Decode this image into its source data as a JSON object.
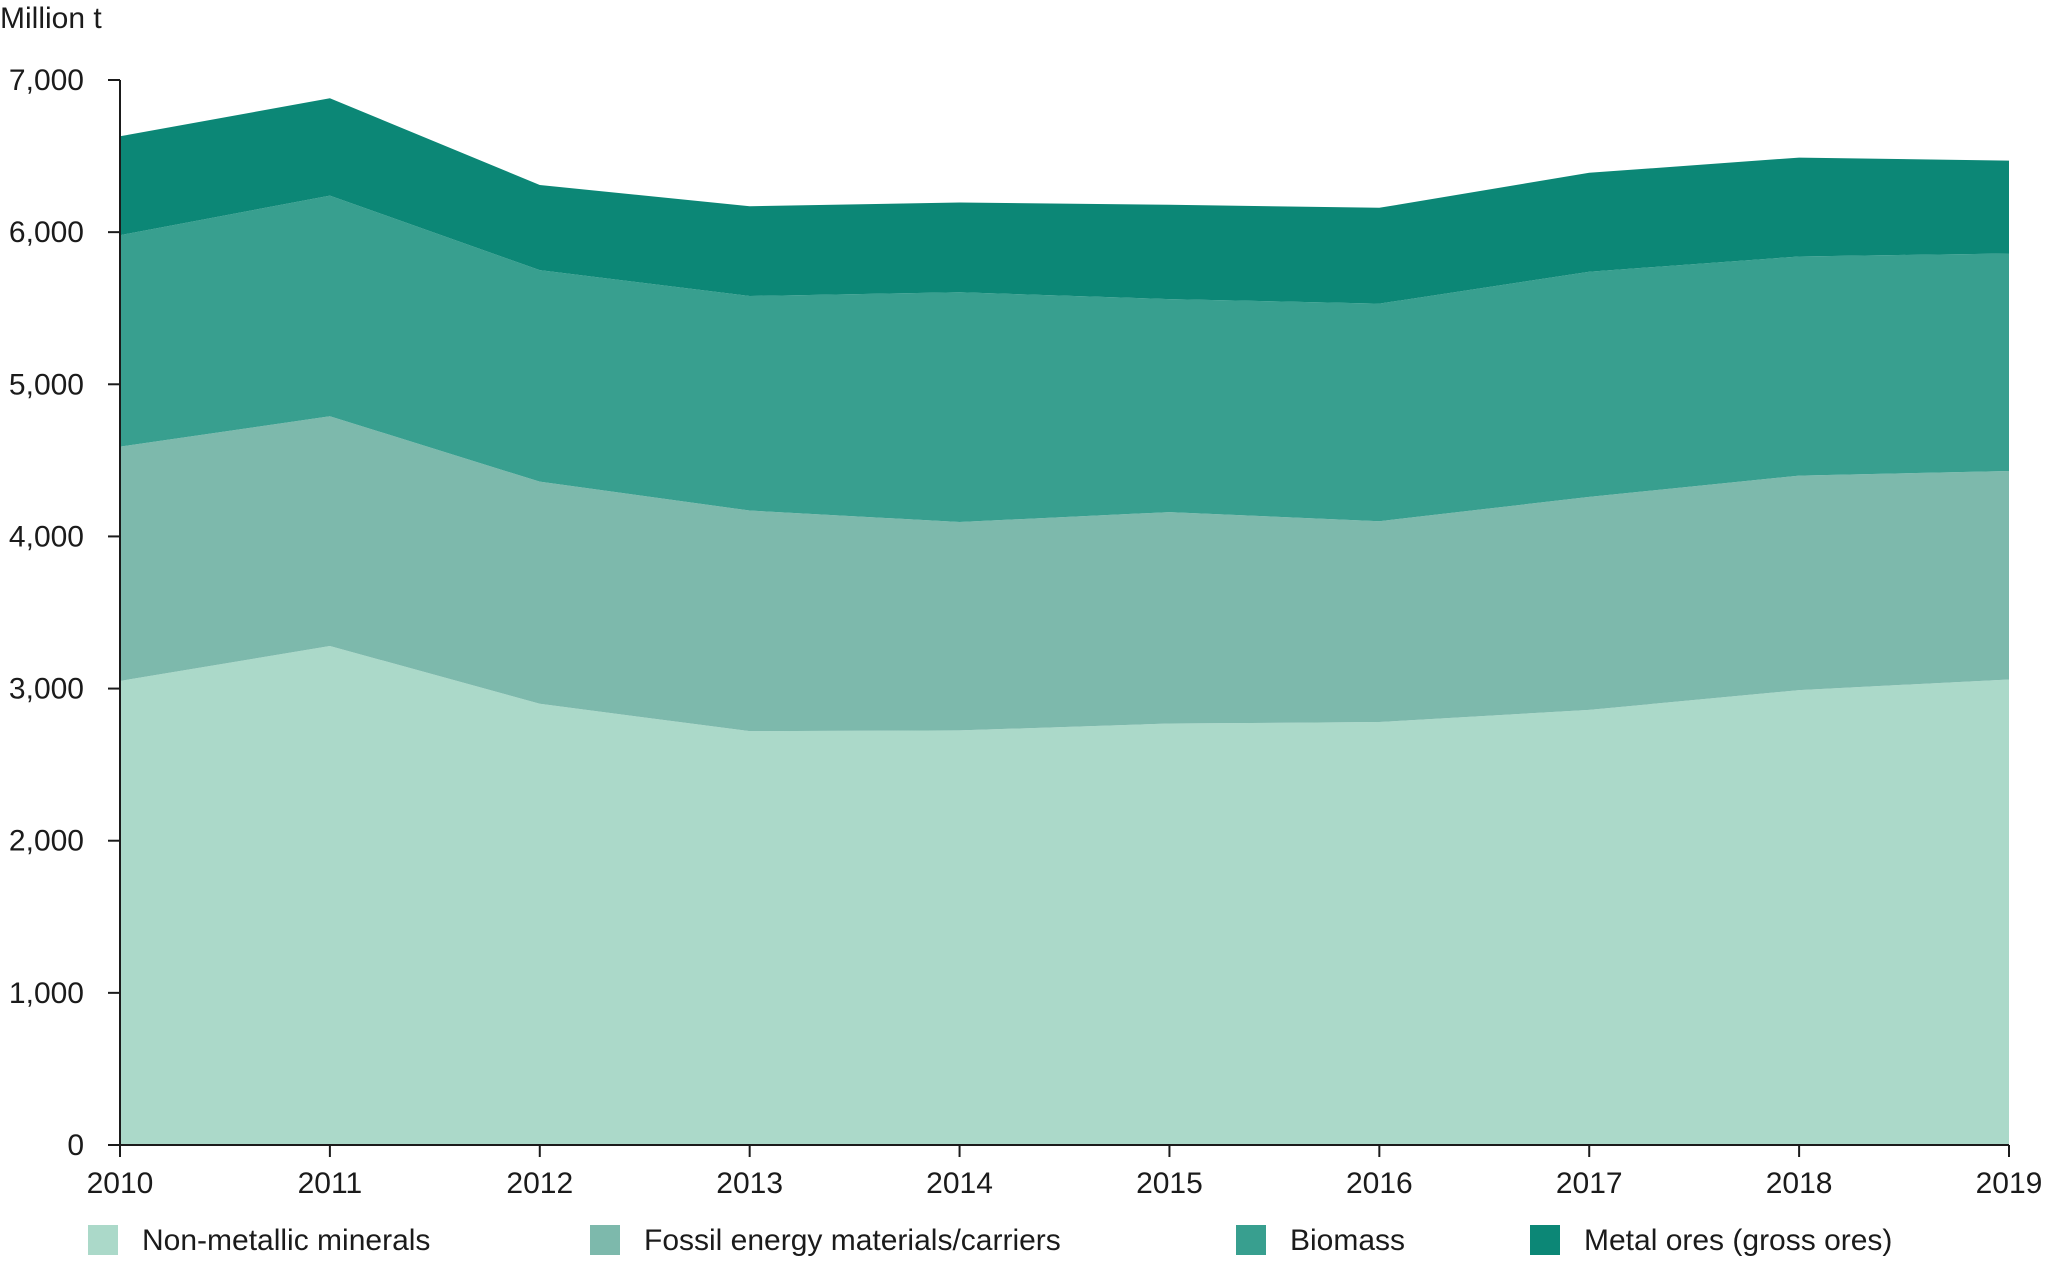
{
  "chart_data": {
    "type": "area",
    "stacked": true,
    "title": "",
    "xlabel": "",
    "ylabel": "Million t",
    "x": [
      "2010",
      "2011",
      "2012",
      "2013",
      "2014",
      "2015",
      "2016",
      "2017",
      "2018",
      "2019"
    ],
    "ylim": [
      0,
      7000
    ],
    "yticks": [
      0,
      1000,
      2000,
      3000,
      4000,
      5000,
      6000,
      7000
    ],
    "ytick_labels": [
      "0",
      "1,000",
      "2,000",
      "3,000",
      "4,000",
      "5,000",
      "6,000",
      "7,000"
    ],
    "grid": false,
    "legend_position": "bottom",
    "series": [
      {
        "name": "Non-metallic minerals",
        "color": "#abd9c9",
        "values": [
          3050,
          3280,
          2900,
          2720,
          2725,
          2770,
          2780,
          2860,
          2990,
          3060
        ]
      },
      {
        "name": "Fossil energy materials/carriers",
        "color": "#7db9ac",
        "values": [
          1540,
          1510,
          1460,
          1450,
          1370,
          1390,
          1320,
          1400,
          1410,
          1370
        ]
      },
      {
        "name": "Biomass",
        "color": "#389f8f",
        "values": [
          1390,
          1450,
          1390,
          1410,
          1510,
          1400,
          1430,
          1480,
          1440,
          1430
        ]
      },
      {
        "name": "Metal ores (gross ores)",
        "color": "#0c8776",
        "values": [
          650,
          640,
          560,
          590,
          590,
          620,
          630,
          650,
          650,
          610
        ]
      }
    ]
  }
}
